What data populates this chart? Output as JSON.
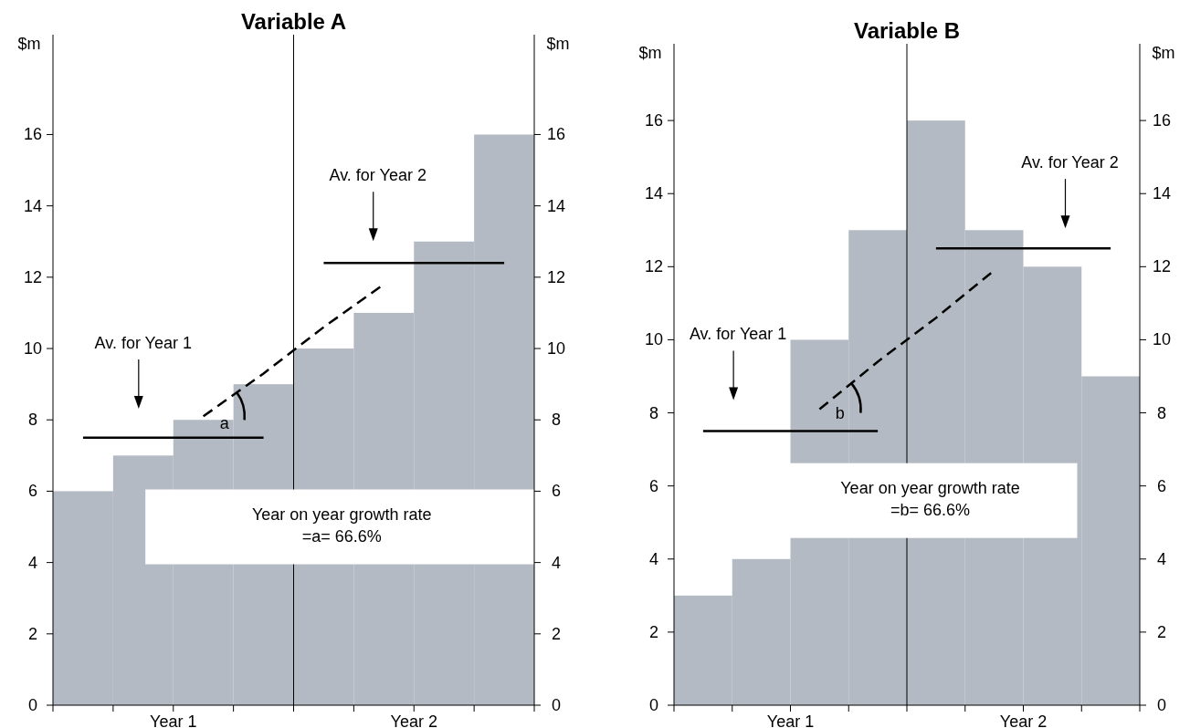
{
  "chart_data": [
    {
      "type": "bar",
      "title": "Variable A",
      "ylabel": "$m",
      "y2label": "$m",
      "categories": [
        null,
        null,
        null,
        null,
        null,
        null,
        null,
        null
      ],
      "ylim": [
        0,
        18.8
      ],
      "yticks": [
        0,
        2,
        4,
        6,
        8,
        10,
        12,
        14,
        16
      ],
      "y2lim": [
        0,
        18.8
      ],
      "y2ticks": [
        0,
        2,
        4,
        6,
        8,
        10,
        12,
        14,
        16
      ],
      "series": [
        {
          "color": "#b4bac4",
          "values": [
            6,
            7,
            8,
            9,
            10,
            11,
            13,
            16
          ]
        },
        {
          "type": "line",
          "color": "#000000",
          "line_style": "solid",
          "values": [
            7.5,
            7.5,
            7.5,
            7.5,
            null,
            null,
            null,
            null
          ]
        },
        {
          "type": "line",
          "color": "#000000",
          "line_style": "solid",
          "values": [
            null,
            null,
            null,
            null,
            12.4,
            12.4,
            12.4,
            12.4
          ]
        },
        {
          "type": "line",
          "color": "#000000",
          "line_style": "dashed",
          "values": [
            null,
            null,
            8.1,
            9.3,
            10.6,
            11.8,
            null,
            null
          ]
        }
      ],
      "annotations": [
        "Av. for Year 1",
        "Av. for Year 2",
        "a",
        "Year on year growth rate\n=a= 66.6%",
        "Year 1",
        "Year 2"
      ]
    },
    {
      "type": "bar",
      "title": "Variable B",
      "ylabel": "$m",
      "y2label": "$m",
      "categories": [
        null,
        null,
        null,
        null,
        null,
        null,
        null,
        null
      ],
      "ylim": [
        0,
        18.1
      ],
      "yticks": [
        0,
        2,
        4,
        6,
        8,
        10,
        12,
        14,
        16
      ],
      "y2lim": [
        0,
        18.1
      ],
      "y2ticks": [
        0,
        2,
        4,
        6,
        8,
        10,
        12,
        14,
        16
      ],
      "series": [
        {
          "color": "#b4bac4",
          "values": [
            3,
            4,
            10,
            13,
            16,
            13,
            12,
            9
          ]
        },
        {
          "type": "line",
          "color": "#000000",
          "line_style": "solid",
          "values": [
            7.5,
            7.5,
            7.5,
            7.5,
            null,
            null,
            null,
            null
          ]
        },
        {
          "type": "line",
          "color": "#000000",
          "line_style": "solid",
          "values": [
            null,
            null,
            null,
            null,
            12.5,
            12.5,
            12.5,
            12.5
          ]
        },
        {
          "type": "line",
          "color": "#000000",
          "line_style": "dashed",
          "values": [
            null,
            null,
            8.1,
            9.4,
            10.6,
            11.9,
            null,
            null
          ]
        }
      ],
      "annotations": [
        "Av. for Year 1",
        "Av. for Year 2",
        "b",
        "Year on year growth rate\n=b= 66.6%",
        "Year 1",
        "Year 2"
      ]
    }
  ]
}
